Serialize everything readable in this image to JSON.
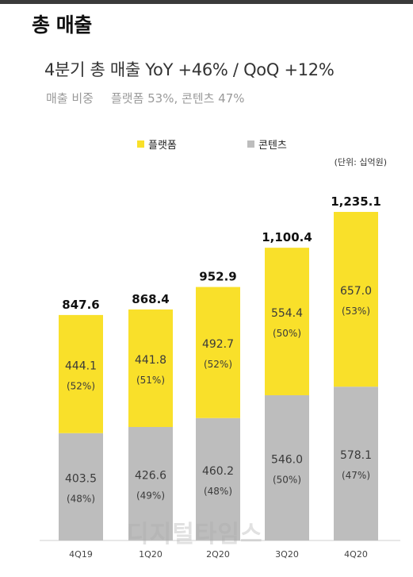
{
  "header": {
    "title": "총 매출",
    "headline": "4분기 총 매출  YoY +46% / QoQ +12%",
    "share_label": "매출 비중",
    "share_value": "플랫폼 53%, 콘텐츠 47%"
  },
  "legend": {
    "platform": "플랫폼",
    "content": "콘텐츠"
  },
  "unit": "(단위: 십억원)",
  "watermark": "디지털타임스",
  "colors": {
    "platform": "#f9e02a",
    "content": "#bdbdbd",
    "top_bar": "#3a3a3a"
  },
  "chart_data": {
    "type": "bar",
    "stacked": true,
    "categories": [
      "4Q19",
      "1Q20",
      "2Q20",
      "3Q20",
      "4Q20"
    ],
    "totals": [
      "847.6",
      "868.4",
      "952.9",
      "1,100.4",
      "1,235.1"
    ],
    "series": [
      {
        "name": "콘텐츠",
        "values": [
          403.5,
          426.6,
          460.2,
          546.0,
          578.1
        ],
        "labels": [
          "403.5",
          "426.6",
          "460.2",
          "546.0",
          "578.1"
        ],
        "shares": [
          "(48%)",
          "(49%)",
          "(48%)",
          "(50%)",
          "(47%)"
        ]
      },
      {
        "name": "플랫폼",
        "values": [
          444.1,
          441.8,
          492.7,
          554.4,
          657.0
        ],
        "labels": [
          "444.1",
          "441.8",
          "492.7",
          "554.4",
          "657.0"
        ],
        "shares": [
          "(52%)",
          "(51%)",
          "(52%)",
          "(50%)",
          "(53%)"
        ]
      }
    ],
    "legend_position": "top",
    "grid": false,
    "ylim": [
      0,
      1235.1
    ]
  }
}
